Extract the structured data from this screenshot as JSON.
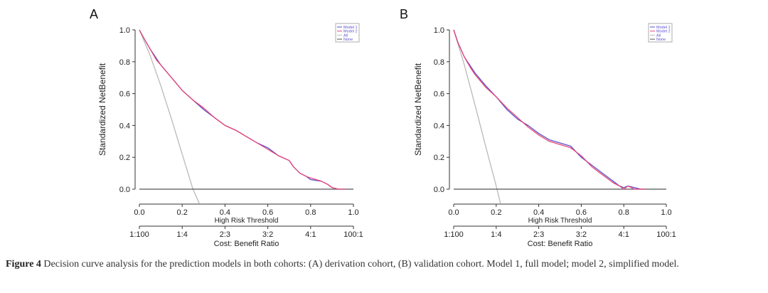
{
  "figure": {
    "caption_label": "Figure 4",
    "caption_text": "Decision curve analysis for the prediction models in both cohorts: (A) derivation cohort, (B) validation cohort. Model 1, full model; model 2, simplified model."
  },
  "colors": {
    "model1": "#5a4fc8",
    "model2": "#e8457a",
    "all": "#b9b9b9",
    "none": "#555555"
  },
  "chart_data": [
    {
      "panel": "A",
      "type": "line",
      "xlabel": "High Risk Threshold",
      "ylabel": "Standardized NetBenefit",
      "xlim": [
        0,
        1
      ],
      "ylim": [
        -0.09,
        1.02
      ],
      "xticks": [
        "0.0",
        "0.2",
        "0.4",
        "0.6",
        "0.8",
        "1.0"
      ],
      "yticks": [
        "0.0",
        "0.2",
        "0.4",
        "0.6",
        "0.8",
        "1.0"
      ],
      "secondary_axis": {
        "label": "Cost: Benefit Ratio",
        "ticks": [
          "1:100",
          "1:4",
          "2:3",
          "3:2",
          "4:1",
          "100:1"
        ]
      },
      "legend": {
        "position": "top-right",
        "entries": [
          "Model 1",
          "Model 2",
          "All",
          "None"
        ]
      },
      "series": [
        {
          "name": "Model 1",
          "x": [
            0,
            0.02,
            0.05,
            0.08,
            0.1,
            0.15,
            0.2,
            0.25,
            0.3,
            0.35,
            0.4,
            0.45,
            0.5,
            0.55,
            0.6,
            0.65,
            0.7,
            0.72,
            0.75,
            0.78,
            0.8,
            0.85,
            0.88,
            0.9,
            0.93,
            0.96
          ],
          "y": [
            1.0,
            0.95,
            0.88,
            0.82,
            0.78,
            0.7,
            0.62,
            0.56,
            0.5,
            0.45,
            0.4,
            0.37,
            0.33,
            0.29,
            0.26,
            0.21,
            0.18,
            0.14,
            0.1,
            0.08,
            0.06,
            0.05,
            0.03,
            0.01,
            0.0,
            0.0
          ]
        },
        {
          "name": "Model 2",
          "x": [
            0,
            0.02,
            0.05,
            0.08,
            0.1,
            0.15,
            0.2,
            0.25,
            0.3,
            0.35,
            0.4,
            0.45,
            0.5,
            0.55,
            0.6,
            0.65,
            0.7,
            0.72,
            0.75,
            0.78,
            0.8,
            0.85,
            0.88,
            0.9,
            0.93,
            0.96
          ],
          "y": [
            1.0,
            0.95,
            0.88,
            0.81,
            0.78,
            0.7,
            0.62,
            0.56,
            0.51,
            0.45,
            0.4,
            0.37,
            0.33,
            0.29,
            0.25,
            0.21,
            0.18,
            0.14,
            0.1,
            0.08,
            0.07,
            0.05,
            0.03,
            0.01,
            0.0,
            0.0
          ]
        },
        {
          "name": "All",
          "x": [
            0,
            0.05,
            0.1,
            0.15,
            0.2,
            0.25,
            0.28
          ],
          "y": [
            1.0,
            0.84,
            0.65,
            0.44,
            0.22,
            0.0,
            -0.09
          ]
        },
        {
          "name": "None",
          "x": [
            0,
            1
          ],
          "y": [
            0,
            0
          ]
        }
      ]
    },
    {
      "panel": "B",
      "type": "line",
      "xlabel": "High Risk Threshold",
      "ylabel": "Standardized NetBenefit",
      "xlim": [
        0,
        1
      ],
      "ylim": [
        -0.09,
        1.02
      ],
      "xticks": [
        "0.0",
        "0.2",
        "0.4",
        "0.6",
        "0.8",
        "1.0"
      ],
      "yticks": [
        "0.0",
        "0.2",
        "0.4",
        "0.6",
        "0.8",
        "1.0"
      ],
      "secondary_axis": {
        "label": "Cost: Benefit Ratio",
        "ticks": [
          "1:100",
          "1:4",
          "2:3",
          "3:2",
          "4:1",
          "100:1"
        ]
      },
      "legend": {
        "position": "top-right",
        "entries": [
          "Model 1",
          "Model 2",
          "All",
          "None"
        ]
      },
      "series": [
        {
          "name": "Model 1",
          "x": [
            0,
            0.02,
            0.05,
            0.08,
            0.1,
            0.15,
            0.2,
            0.25,
            0.3,
            0.35,
            0.4,
            0.45,
            0.5,
            0.55,
            0.6,
            0.65,
            0.7,
            0.75,
            0.78,
            0.8,
            0.82,
            0.85,
            0.88,
            0.9
          ],
          "y": [
            1.0,
            0.92,
            0.83,
            0.77,
            0.73,
            0.65,
            0.58,
            0.5,
            0.44,
            0.4,
            0.35,
            0.31,
            0.29,
            0.27,
            0.2,
            0.15,
            0.1,
            0.05,
            0.02,
            0.01,
            0.02,
            0.01,
            0.0,
            0.0
          ]
        },
        {
          "name": "Model 2",
          "x": [
            0,
            0.02,
            0.05,
            0.08,
            0.1,
            0.15,
            0.2,
            0.25,
            0.3,
            0.35,
            0.4,
            0.45,
            0.5,
            0.55,
            0.6,
            0.65,
            0.7,
            0.75,
            0.78,
            0.8,
            0.82,
            0.85,
            0.88,
            0.9
          ],
          "y": [
            1.0,
            0.92,
            0.83,
            0.76,
            0.72,
            0.64,
            0.58,
            0.51,
            0.45,
            0.39,
            0.34,
            0.3,
            0.28,
            0.26,
            0.21,
            0.14,
            0.09,
            0.04,
            0.02,
            0.0,
            0.02,
            0.0,
            0.0,
            0.0
          ]
        },
        {
          "name": "All",
          "x": [
            0,
            0.05,
            0.1,
            0.15,
            0.2,
            0.22
          ],
          "y": [
            1.0,
            0.78,
            0.53,
            0.27,
            0.02,
            -0.09
          ]
        },
        {
          "name": "None",
          "x": [
            0,
            1
          ],
          "y": [
            0,
            0
          ]
        }
      ]
    }
  ]
}
